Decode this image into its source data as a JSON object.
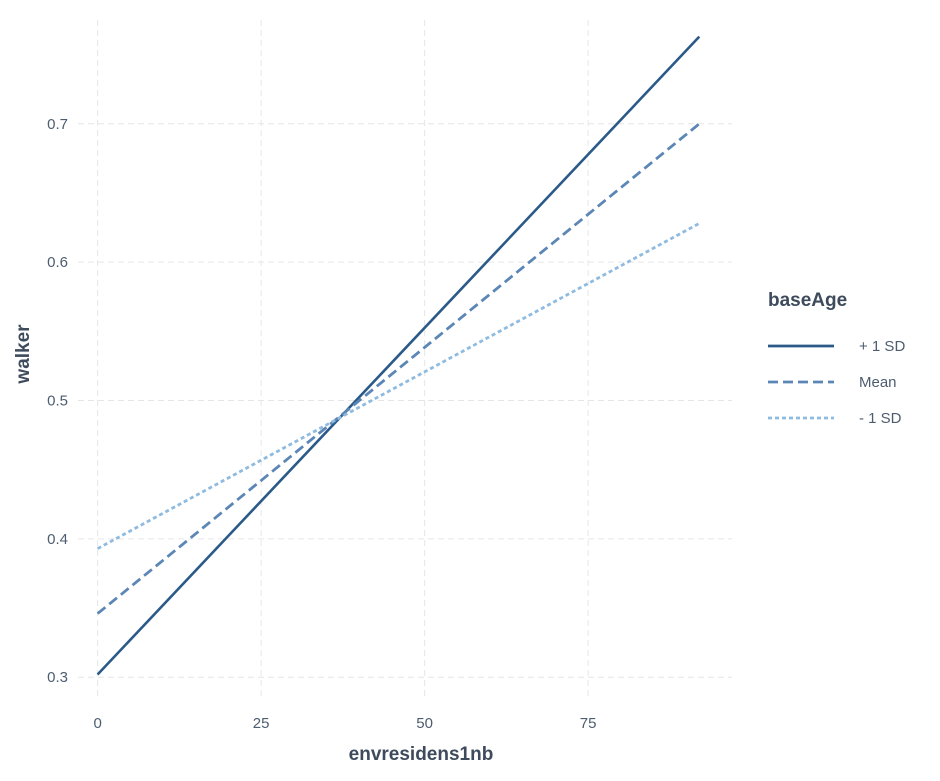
{
  "chart_data": {
    "type": "line",
    "xlabel": "envresidens1nb",
    "ylabel": "walker",
    "xlim": [
      -3,
      97
    ],
    "ylim": [
      0.285,
      0.775
    ],
    "x_ticks": [
      0,
      25,
      50,
      75
    ],
    "x_tick_labels": [
      "0",
      "25",
      "50",
      "75"
    ],
    "y_ticks": [
      0.3,
      0.4,
      0.5,
      0.6,
      0.7
    ],
    "y_tick_labels": [
      "0.3",
      "0.4",
      "0.5",
      "0.6",
      "0.7"
    ],
    "grid": true,
    "grid_style": "dashed",
    "legend_position": "right",
    "legend_title": "baseAge",
    "series": [
      {
        "name": "+ 1 SD",
        "color": "#2b5a89",
        "dash": "solid",
        "x": [
          0,
          92
        ],
        "y": [
          0.302,
          0.763
        ]
      },
      {
        "name": "Mean",
        "color": "#5b86b5",
        "dash": "dashed",
        "x": [
          0,
          92
        ],
        "y": [
          0.346,
          0.7
        ]
      },
      {
        "name": "- 1 SD",
        "color": "#8fbbe0",
        "dash": "dotted",
        "x": [
          0,
          92
        ],
        "y": [
          0.393,
          0.628
        ]
      }
    ]
  }
}
